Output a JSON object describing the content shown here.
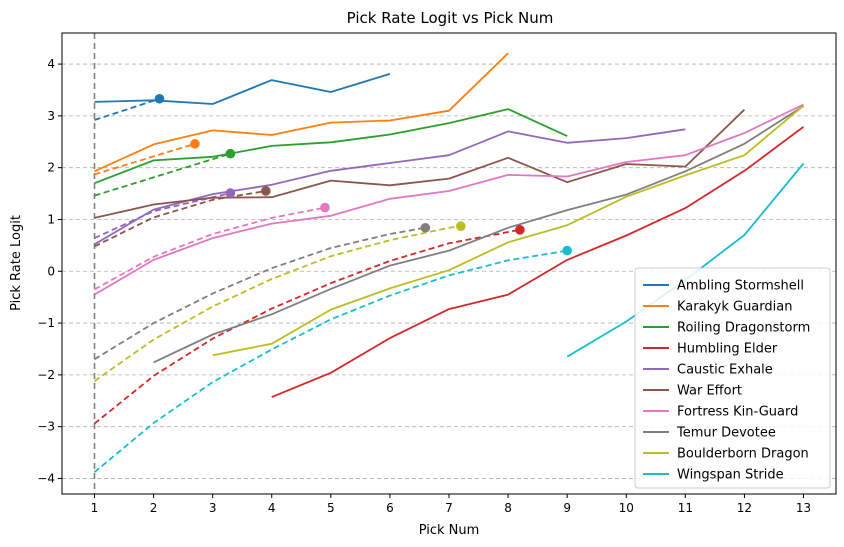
{
  "chart_data": {
    "type": "line",
    "title": "Pick Rate Logit vs Pick Num",
    "xlabel": "Pick Num",
    "ylabel": "Pick Rate Logit",
    "xlim": [
      0.45,
      13.55
    ],
    "ylim": [
      -4.3,
      4.6
    ],
    "x_ticks": [
      1,
      2,
      3,
      4,
      5,
      6,
      7,
      8,
      9,
      10,
      11,
      12,
      13
    ],
    "y_ticks": [
      -4,
      -3,
      -2,
      -1,
      0,
      1,
      2,
      3,
      4
    ],
    "grid": "horizontal-dashed",
    "reference_line": {
      "x": 1,
      "style": "dashed",
      "color": "#7f7f7f"
    },
    "legend_position": "lower-right",
    "series": [
      {
        "name": "Ambling Stormshell",
        "color": "#1f77b4",
        "x": [
          1,
          2,
          3,
          4,
          5,
          6
        ],
        "y": [
          3.27,
          3.3,
          3.23,
          3.69,
          3.46,
          3.81
        ],
        "fit": {
          "x": [
            1,
            2.1
          ],
          "y": [
            2.92,
            3.33
          ]
        },
        "marker": {
          "x": 2.1,
          "y": 3.33
        }
      },
      {
        "name": "Karakyk Guardian",
        "color": "#ff7f0e",
        "x": [
          1,
          2,
          3,
          4,
          5,
          6,
          7,
          8
        ],
        "y": [
          1.93,
          2.45,
          2.72,
          2.63,
          2.87,
          2.91,
          3.1,
          4.21
        ],
        "fit": {
          "x": [
            1,
            2.7
          ],
          "y": [
            1.87,
            2.46
          ]
        },
        "marker": {
          "x": 2.7,
          "y": 2.46
        }
      },
      {
        "name": "Roiling Dragonstorm",
        "color": "#2ca02c",
        "x": [
          1,
          2,
          3,
          4,
          5,
          6,
          7,
          8,
          9
        ],
        "y": [
          1.7,
          2.14,
          2.21,
          2.42,
          2.49,
          2.64,
          2.86,
          3.13,
          2.61
        ],
        "fit": {
          "x": [
            1,
            3.3
          ],
          "y": [
            1.46,
            2.27
          ]
        },
        "marker": {
          "x": 3.3,
          "y": 2.27
        }
      },
      {
        "name": "Humbling Elder",
        "color": "#d62728",
        "x": [
          4,
          5,
          6,
          7,
          8,
          9,
          10,
          11,
          12,
          13
        ],
        "y": [
          -2.43,
          -1.96,
          -1.29,
          -0.73,
          -0.45,
          0.22,
          0.69,
          1.22,
          1.94,
          2.79
        ],
        "fit": {
          "x": [
            1,
            2,
            3,
            4,
            5,
            6,
            7,
            8.2
          ],
          "y": [
            -2.94,
            -2.02,
            -1.3,
            -0.72,
            -0.23,
            0.2,
            0.54,
            0.8
          ]
        },
        "marker": {
          "x": 8.2,
          "y": 0.8
        }
      },
      {
        "name": "Caustic Exhale",
        "color": "#9467bd",
        "x": [
          1,
          2,
          3,
          4,
          5,
          6,
          7,
          8,
          9,
          10,
          11
        ],
        "y": [
          0.52,
          1.19,
          1.49,
          1.67,
          1.94,
          2.09,
          2.24,
          2.7,
          2.48,
          2.57,
          2.74
        ],
        "fit": {
          "x": [
            1,
            2,
            3.3
          ],
          "y": [
            0.64,
            1.16,
            1.51
          ]
        },
        "marker": {
          "x": 3.3,
          "y": 1.51
        }
      },
      {
        "name": "War Effort",
        "color": "#8c564b",
        "x": [
          1,
          2,
          3,
          4,
          5,
          6,
          7,
          8,
          9,
          10,
          11,
          12
        ],
        "y": [
          1.03,
          1.29,
          1.42,
          1.43,
          1.75,
          1.66,
          1.79,
          2.19,
          1.72,
          2.07,
          2.02,
          3.12
        ],
        "fit": {
          "x": [
            1,
            2,
            3,
            3.9
          ],
          "y": [
            0.48,
            1.04,
            1.38,
            1.55
          ]
        },
        "marker": {
          "x": 3.9,
          "y": 1.55
        }
      },
      {
        "name": "Fortress Kin-Guard",
        "color": "#e377c2",
        "x": [
          1,
          2,
          3,
          4,
          5,
          6,
          7,
          8,
          9,
          10,
          11,
          12,
          13
        ],
        "y": [
          -0.45,
          0.22,
          0.64,
          0.92,
          1.07,
          1.4,
          1.55,
          1.86,
          1.83,
          2.11,
          2.24,
          2.67,
          3.22
        ],
        "fit": {
          "x": [
            1,
            2,
            3,
            4,
            4.9
          ],
          "y": [
            -0.35,
            0.28,
            0.72,
            1.03,
            1.23
          ]
        },
        "marker": {
          "x": 4.9,
          "y": 1.23
        }
      },
      {
        "name": "Temur Devotee",
        "color": "#7f7f7f",
        "x": [
          2,
          3,
          4,
          5,
          6,
          7,
          8,
          9,
          10,
          11,
          12,
          13
        ],
        "y": [
          -1.76,
          -1.22,
          -0.83,
          -0.34,
          0.11,
          0.4,
          0.84,
          1.18,
          1.48,
          1.93,
          2.46,
          3.19
        ],
        "fit": {
          "x": [
            1,
            2,
            3,
            4,
            5,
            6,
            6.6
          ],
          "y": [
            -1.7,
            -1.0,
            -0.43,
            0.06,
            0.45,
            0.72,
            0.84
          ]
        },
        "marker": {
          "x": 6.6,
          "y": 0.84
        }
      },
      {
        "name": "Boulderborn Dragon",
        "color": "#bcbd22",
        "x": [
          3,
          4,
          5,
          6,
          7,
          8,
          9,
          10,
          11,
          12,
          13
        ],
        "y": [
          -1.62,
          -1.4,
          -0.74,
          -0.33,
          0.02,
          0.56,
          0.89,
          1.44,
          1.85,
          2.24,
          3.2
        ],
        "fit": {
          "x": [
            1,
            2,
            3,
            4,
            5,
            6,
            7,
            7.2
          ],
          "y": [
            -2.12,
            -1.32,
            -0.68,
            -0.15,
            0.29,
            0.6,
            0.84,
            0.87
          ]
        },
        "marker": {
          "x": 7.2,
          "y": 0.87
        }
      },
      {
        "name": "Wingspan Stride",
        "color": "#17becf",
        "x": [
          9,
          10,
          11,
          12,
          13
        ],
        "y": [
          -1.65,
          -0.97,
          -0.17,
          0.7,
          2.08
        ],
        "fit": {
          "x": [
            1,
            2,
            3,
            4,
            5,
            6,
            7,
            8,
            9
          ],
          "y": [
            -3.88,
            -2.93,
            -2.14,
            -1.51,
            -0.93,
            -0.47,
            -0.08,
            0.21,
            0.4
          ]
        },
        "marker": {
          "x": 9.0,
          "y": 0.4
        }
      }
    ]
  }
}
